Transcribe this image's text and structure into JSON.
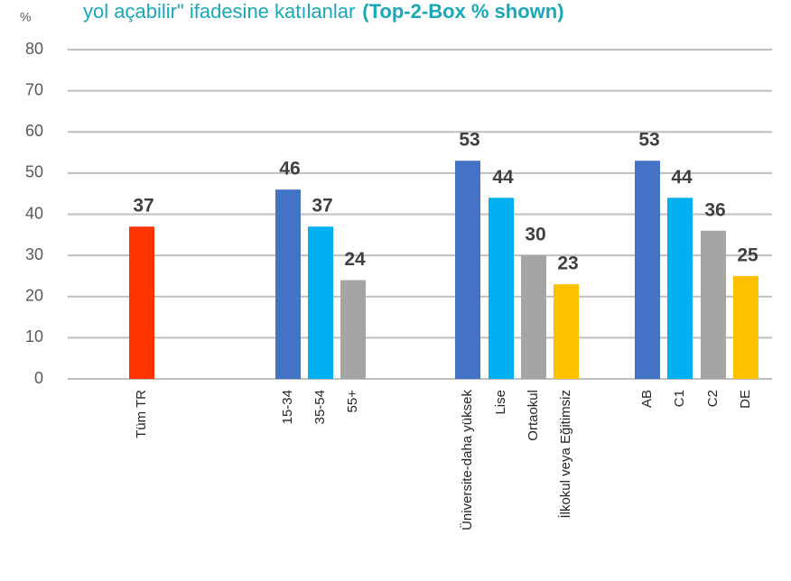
{
  "chart_data": {
    "type": "bar",
    "title": [
      "yol açabilir\" ifadesine katılanlar",
      "(Top-2-Box % shown)"
    ],
    "y_label": "%",
    "categories": [
      "Tüm TR",
      "15-34",
      "35-54",
      "55+",
      "Üniversite-daha yüksek",
      "Lise",
      "Ortaokul",
      "İlkokul veya Eğitimsiz",
      "AB",
      "C1",
      "C2",
      "DE"
    ],
    "values": [
      37,
      46,
      37,
      24,
      53,
      44,
      30,
      23,
      53,
      44,
      36,
      25
    ],
    "colors": [
      "#ff3300",
      "#4472c4",
      "#00b0f0",
      "#a5a5a5",
      "#4472c4",
      "#00b0f0",
      "#a5a5a5",
      "#ffc000",
      "#4472c4",
      "#00b0f0",
      "#a5a5a5",
      "#ffc000"
    ],
    "ylim": [
      0,
      80
    ],
    "yticks": [
      0,
      10,
      20,
      30,
      40,
      50,
      60,
      70,
      80
    ],
    "grid": true
  }
}
